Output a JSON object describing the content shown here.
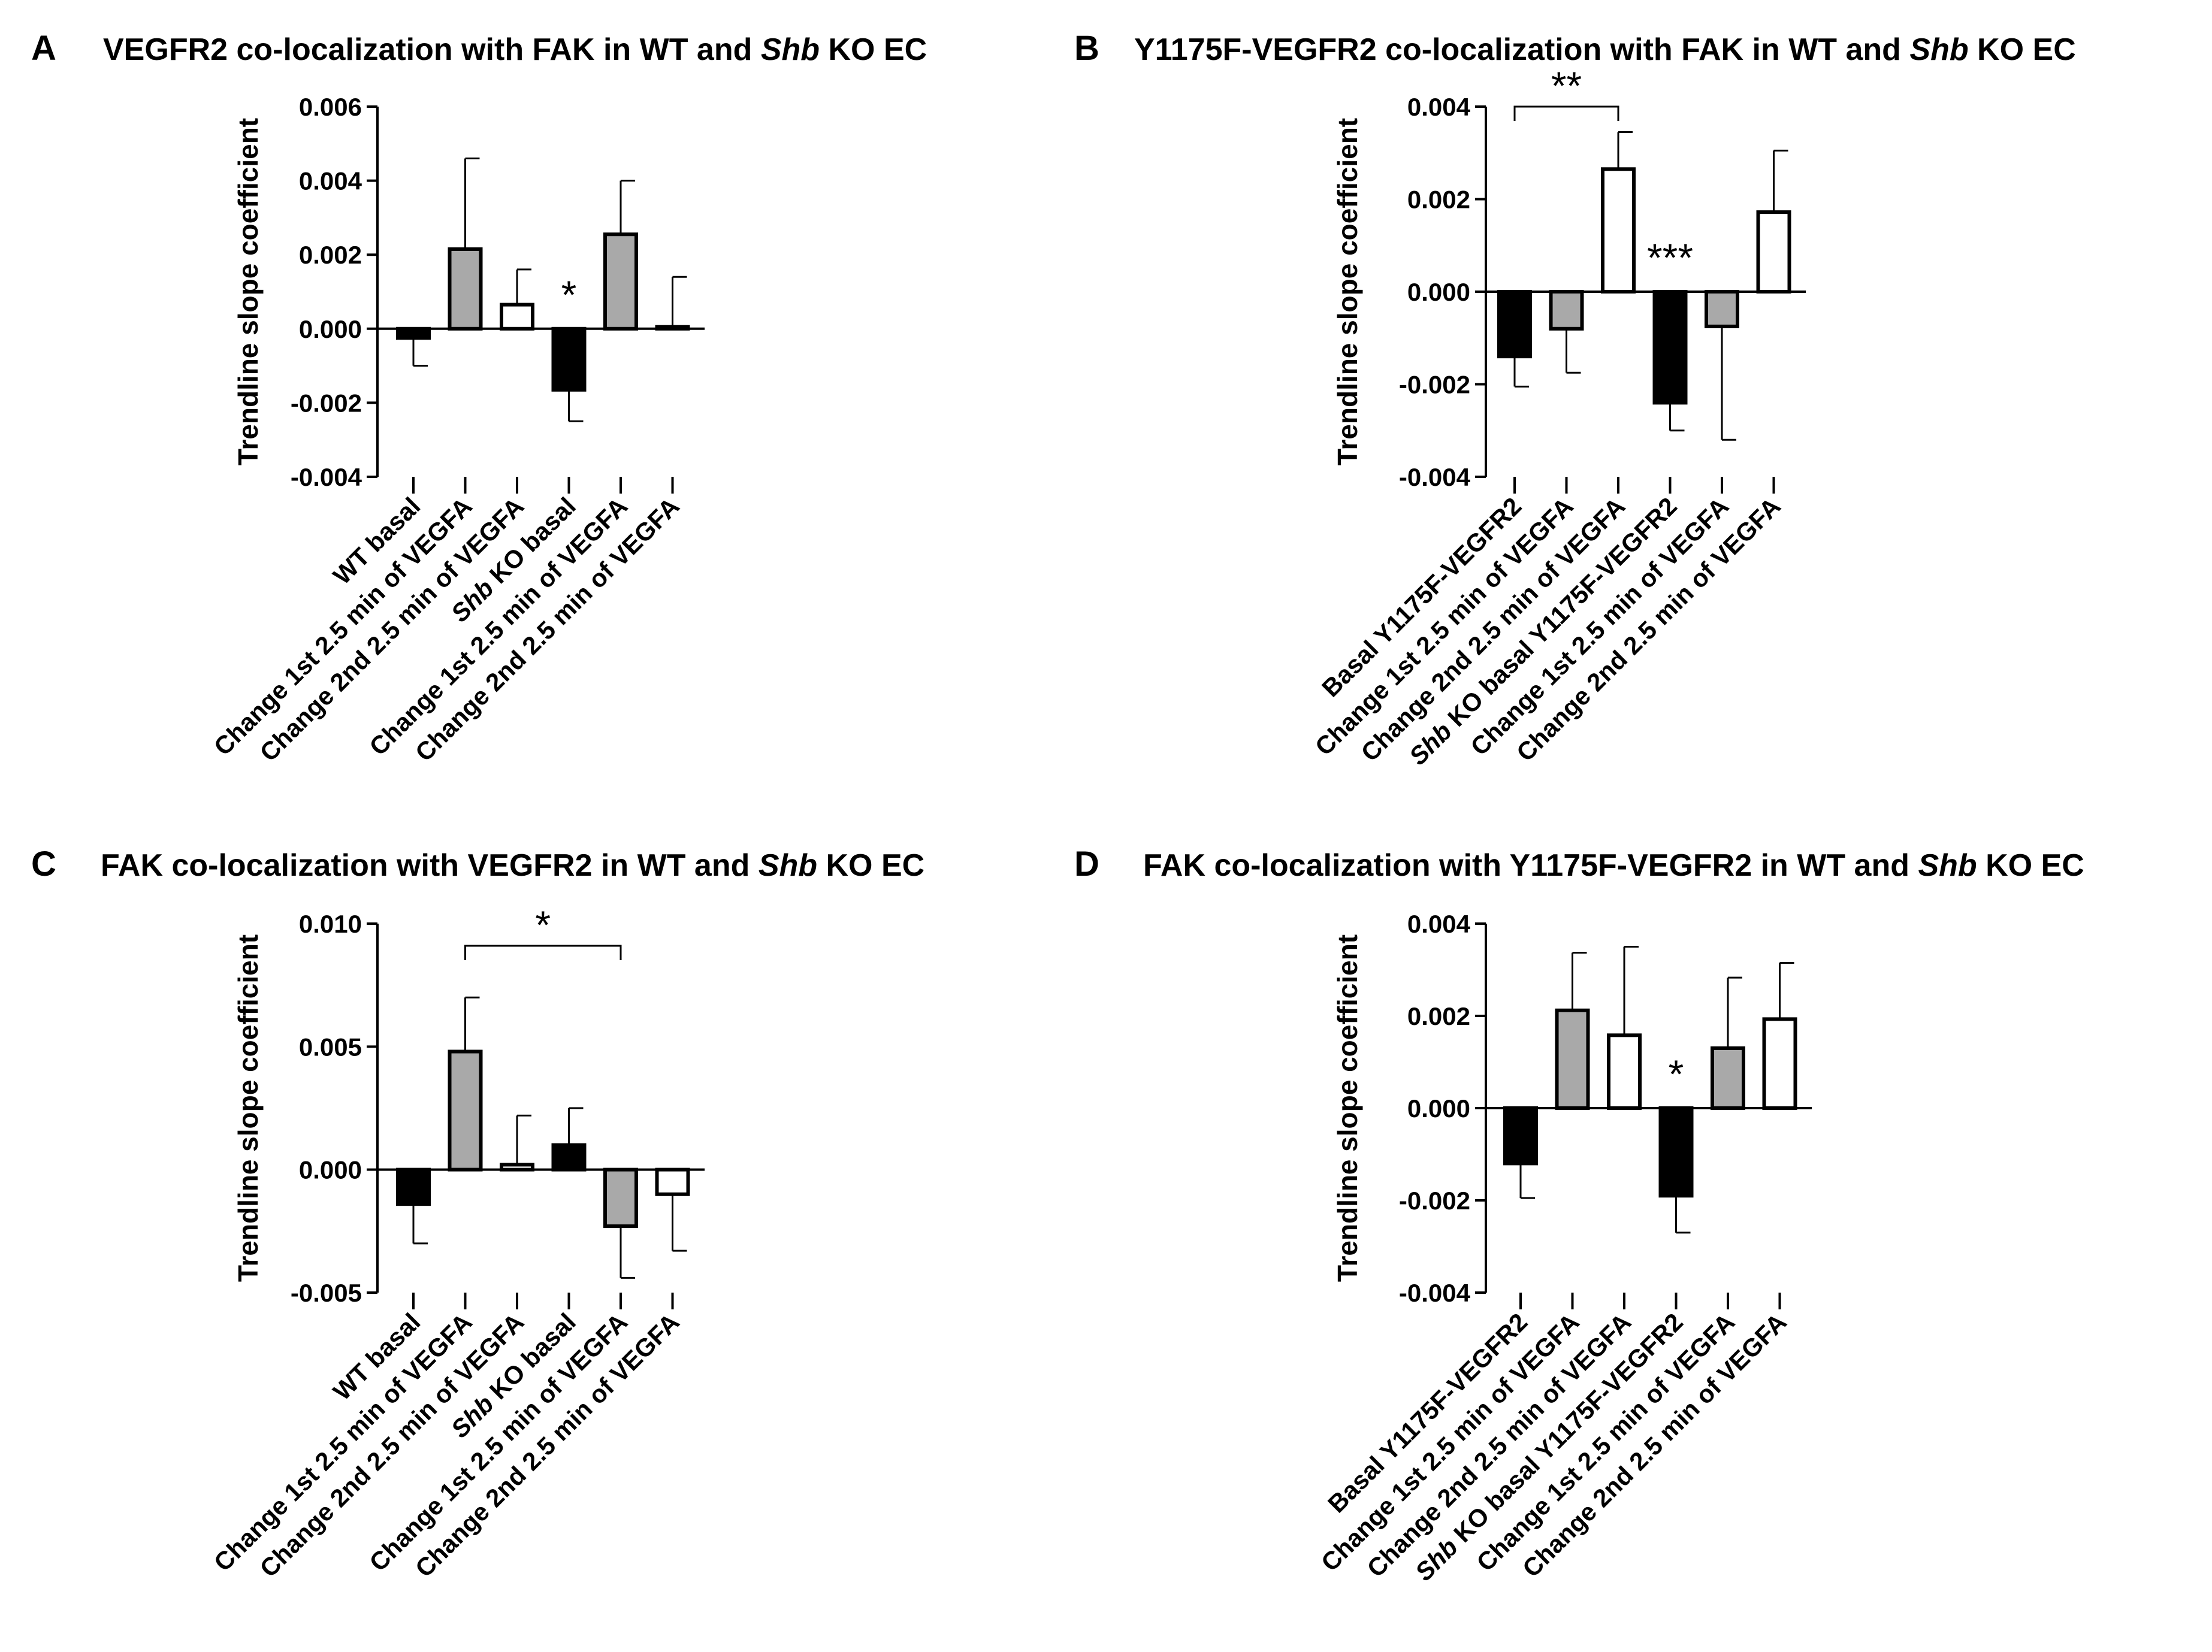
{
  "figure": {
    "chart_data": [
      {
        "type": "bar",
        "letter": "A",
        "title_parts": [
          {
            "text": "VEGFR2 co-localization with FAK in WT and ",
            "italic": false
          },
          {
            "text": "Shb",
            "italic": true
          },
          {
            "text": " KO EC",
            "italic": false
          }
        ],
        "ylabel": "Trendline slope coefficient",
        "xlabel": "",
        "ylim": [
          -0.004,
          0.006
        ],
        "yticks": [
          -0.004,
          -0.002,
          0.0,
          0.002,
          0.004,
          0.006
        ],
        "ytick_labels": [
          "-0.004",
          "-0.002",
          "0.000",
          "0.002",
          "0.004",
          "0.006"
        ],
        "categories": [
          [
            {
              "text": "WT basal",
              "italic": false
            }
          ],
          [
            {
              "text": "Change 1st 2.5 min of VEGFA",
              "italic": false
            }
          ],
          [
            {
              "text": "Change 2nd 2.5 min of VEGFA",
              "italic": false
            }
          ],
          [
            {
              "text": "Shb",
              "italic": true
            },
            {
              "text": " KO basal",
              "italic": false
            }
          ],
          [
            {
              "text": "Change 1st 2.5 min of VEGFA",
              "italic": false
            }
          ],
          [
            {
              "text": "Change 2nd 2.5 min of VEGFA",
              "italic": false
            }
          ]
        ],
        "values": [
          -0.00025,
          0.00215,
          0.00065,
          -0.00165,
          0.00255,
          5e-05
        ],
        "errors": [
          0.00075,
          0.00245,
          0.00095,
          0.00085,
          0.00145,
          0.00135
        ],
        "fills": [
          "#000000",
          "#a9a9a9",
          "#ffffff",
          "#000000",
          "#a9a9a9",
          "#ffffff"
        ],
        "annotations": [
          {
            "type": "star",
            "text": "*",
            "bar": 3
          }
        ]
      },
      {
        "type": "bar",
        "letter": "B",
        "title_parts": [
          {
            "text": "Y1175F-VEGFR2 co-localization with FAK in WT and ",
            "italic": false
          },
          {
            "text": "Shb",
            "italic": true
          },
          {
            "text": " KO EC",
            "italic": false
          }
        ],
        "ylabel": "Trendline slope coefficient",
        "xlabel": "",
        "ylim": [
          -0.004,
          0.004
        ],
        "yticks": [
          -0.004,
          -0.002,
          0.0,
          0.002,
          0.004
        ],
        "ytick_labels": [
          "-0.004",
          "-0.002",
          "0.000",
          "0.002",
          "0.004"
        ],
        "categories": [
          [
            {
              "text": "Basal Y1175F-VEGFR2",
              "italic": false
            }
          ],
          [
            {
              "text": "Change 1st 2.5 min of VEGFA",
              "italic": false
            }
          ],
          [
            {
              "text": "Change 2nd 2.5 min of VEGFA",
              "italic": false
            }
          ],
          [
            {
              "text": "Shb",
              "italic": true
            },
            {
              "text": " KO basal Y1175F-VEGFR2",
              "italic": false
            }
          ],
          [
            {
              "text": "Change 1st 2.5 min of VEGFA",
              "italic": false
            }
          ],
          [
            {
              "text": "Change 2nd 2.5 min of VEGFA",
              "italic": false
            }
          ]
        ],
        "values": [
          -0.0014,
          -0.0008,
          0.00265,
          -0.0024,
          -0.00075,
          0.00172
        ],
        "errors": [
          0.00065,
          0.00095,
          0.0008,
          0.0006,
          0.00245,
          0.00133
        ],
        "fills": [
          "#000000",
          "#a9a9a9",
          "#ffffff",
          "#000000",
          "#a9a9a9",
          "#ffffff"
        ],
        "annotations": [
          {
            "type": "bracket",
            "text": "**",
            "from": 0,
            "to": 2,
            "y": 0.004
          },
          {
            "type": "star",
            "text": "***",
            "bar": 3
          }
        ]
      },
      {
        "type": "bar",
        "letter": "C",
        "title_parts": [
          {
            "text": "FAK co-localization with VEGFR2 in WT and ",
            "italic": false
          },
          {
            "text": "Shb",
            "italic": true
          },
          {
            "text": " KO EC",
            "italic": false
          }
        ],
        "ylabel": "Trendline slope coefficient",
        "xlabel": "",
        "ylim": [
          -0.005,
          0.01
        ],
        "yticks": [
          -0.005,
          0.0,
          0.005,
          0.01
        ],
        "ytick_labels": [
          "-0.005",
          "0.000",
          "0.005",
          "0.010"
        ],
        "categories": [
          [
            {
              "text": "WT basal",
              "italic": false
            }
          ],
          [
            {
              "text": "Change 1st 2.5 min of VEGFA",
              "italic": false
            }
          ],
          [
            {
              "text": "Change 2nd 2.5 min of VEGFA",
              "italic": false
            }
          ],
          [
            {
              "text": "Shb",
              "italic": true
            },
            {
              "text": " KO basal",
              "italic": false
            }
          ],
          [
            {
              "text": "Change 1st 2.5 min of VEGFA",
              "italic": false
            }
          ],
          [
            {
              "text": "Change 2nd 2.5 min of VEGFA",
              "italic": false
            }
          ]
        ],
        "values": [
          -0.0014,
          0.0048,
          0.0002,
          0.001,
          -0.0023,
          -0.001
        ],
        "errors": [
          0.0016,
          0.0022,
          0.002,
          0.0015,
          0.0021,
          0.0023
        ],
        "fills": [
          "#000000",
          "#a9a9a9",
          "#ffffff",
          "#000000",
          "#a9a9a9",
          "#ffffff"
        ],
        "annotations": [
          {
            "type": "bracket",
            "text": "*",
            "from": 1,
            "to": 4,
            "y": 0.0091
          }
        ]
      },
      {
        "type": "bar",
        "letter": "D",
        "title_parts": [
          {
            "text": "FAK co-localization with Y1175F-VEGFR2 in WT and ",
            "italic": false
          },
          {
            "text": "Shb",
            "italic": true
          },
          {
            "text": " KO EC",
            "italic": false
          }
        ],
        "ylabel": "Trendline slope coefficient",
        "xlabel": "",
        "ylim": [
          -0.004,
          0.004
        ],
        "yticks": [
          -0.004,
          -0.002,
          0.0,
          0.002,
          0.004
        ],
        "ytick_labels": [
          "-0.004",
          "-0.002",
          "0.000",
          "0.002",
          "0.004"
        ],
        "categories": [
          [
            {
              "text": "Basal Y1175F-VEGFR2",
              "italic": false
            }
          ],
          [
            {
              "text": "Change 1st 2.5 min of VEGFA",
              "italic": false
            }
          ],
          [
            {
              "text": "Change 2nd 2.5 min of VEGFA",
              "italic": false
            }
          ],
          [
            {
              "text": "Shb",
              "italic": true
            },
            {
              "text": " KO basal Y1175F-VEGFR2",
              "italic": false
            }
          ],
          [
            {
              "text": "Change 1st 2.5 min of VEGFA",
              "italic": false
            }
          ],
          [
            {
              "text": "Change 2nd 2.5 min of VEGFA",
              "italic": false
            }
          ]
        ],
        "values": [
          -0.0012,
          0.00212,
          0.00158,
          -0.0019,
          0.0013,
          0.00193
        ],
        "errors": [
          0.00075,
          0.00125,
          0.00192,
          0.0008,
          0.00153,
          0.00122
        ],
        "fills": [
          "#000000",
          "#a9a9a9",
          "#ffffff",
          "#000000",
          "#a9a9a9",
          "#ffffff"
        ],
        "annotations": [
          {
            "type": "star",
            "text": "*",
            "bar": 3
          }
        ]
      }
    ]
  }
}
